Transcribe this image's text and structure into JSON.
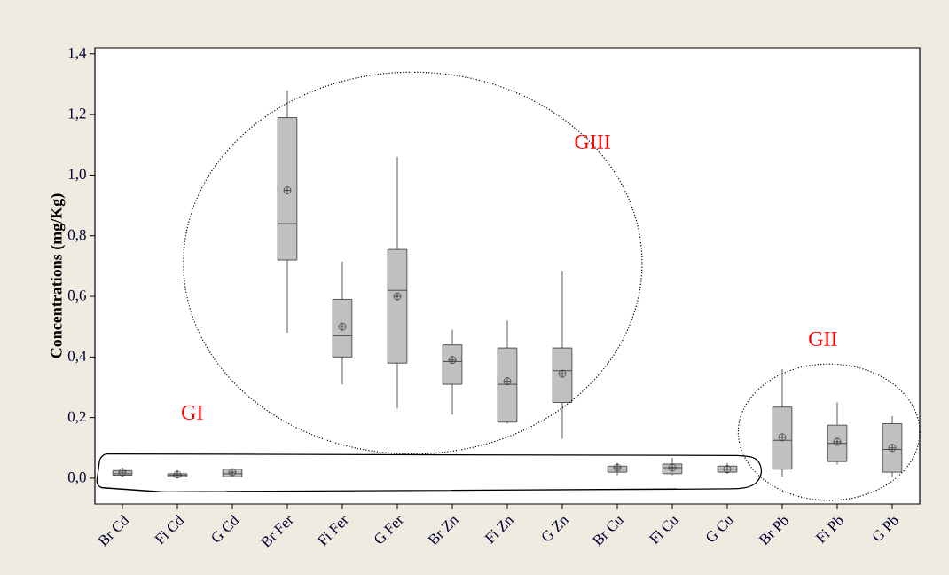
{
  "chart_data": {
    "type": "box",
    "ylabel": "Concentrations (mg/Kg)",
    "categories": [
      "Br Cd",
      "Fi Cd",
      "G Cd",
      "Br Fer",
      "Fi Fer",
      "G Fer",
      "Br Zn",
      "Fi Zn",
      "G Zn",
      "Br Cu",
      "Fi Cu",
      "G Cu",
      "Br Pb",
      "Fi Pb",
      "G Pb"
    ],
    "color": "#c0c0c0",
    "boxes": [
      {
        "low": 0.005,
        "q1": 0.01,
        "median": 0.015,
        "q3": 0.025,
        "high": 0.035,
        "mean": 0.02
      },
      {
        "low": 0.0,
        "q1": 0.005,
        "median": 0.01,
        "q3": 0.015,
        "high": 0.025,
        "mean": 0.012
      },
      {
        "low": 0.005,
        "q1": 0.005,
        "median": 0.015,
        "q3": 0.03,
        "high": 0.03,
        "mean": 0.02
      },
      {
        "low": 0.48,
        "q1": 0.72,
        "median": 0.84,
        "q3": 1.19,
        "high": 1.28,
        "mean": 0.95
      },
      {
        "low": 0.31,
        "q1": 0.4,
        "median": 0.47,
        "q3": 0.59,
        "high": 0.715,
        "mean": 0.5
      },
      {
        "low": 0.23,
        "q1": 0.38,
        "median": 0.62,
        "q3": 0.755,
        "high": 1.06,
        "mean": 0.6
      },
      {
        "low": 0.21,
        "q1": 0.31,
        "median": 0.385,
        "q3": 0.44,
        "high": 0.49,
        "mean": 0.39
      },
      {
        "low": 0.18,
        "q1": 0.185,
        "median": 0.31,
        "q3": 0.43,
        "high": 0.52,
        "mean": 0.32
      },
      {
        "low": 0.13,
        "q1": 0.25,
        "median": 0.355,
        "q3": 0.43,
        "high": 0.685,
        "mean": 0.345
      },
      {
        "low": 0.01,
        "q1": 0.02,
        "median": 0.03,
        "q3": 0.04,
        "high": 0.05,
        "mean": 0.035
      },
      {
        "low": 0.01,
        "q1": 0.015,
        "median": 0.035,
        "q3": 0.047,
        "high": 0.067,
        "mean": 0.035
      },
      {
        "low": 0.015,
        "q1": 0.02,
        "median": 0.03,
        "q3": 0.04,
        "high": 0.05,
        "mean": 0.03
      },
      {
        "low": 0.005,
        "q1": 0.03,
        "median": 0.125,
        "q3": 0.235,
        "high": 0.36,
        "mean": 0.135
      },
      {
        "low": 0.045,
        "q1": 0.055,
        "median": 0.115,
        "q3": 0.175,
        "high": 0.25,
        "mean": 0.12
      },
      {
        "low": 0.003,
        "q1": 0.02,
        "median": 0.095,
        "q3": 0.18,
        "high": 0.205,
        "mean": 0.1
      }
    ],
    "ylim": [
      -0.085,
      1.42
    ],
    "yticks": [
      {
        "value": 0,
        "label": "0,0"
      },
      {
        "value": 0.2,
        "label": "0,2"
      },
      {
        "value": 0.4,
        "label": "0,4"
      },
      {
        "value": 0.6,
        "label": "0,6"
      },
      {
        "value": 0.8,
        "label": "0,8"
      },
      {
        "value": 1.0,
        "label": "1,0"
      },
      {
        "value": 1.2,
        "label": "1,2"
      },
      {
        "value": 1.4,
        "label": "1,4"
      }
    ],
    "annotations": [
      "GI",
      "GII",
      "GIII"
    ]
  }
}
